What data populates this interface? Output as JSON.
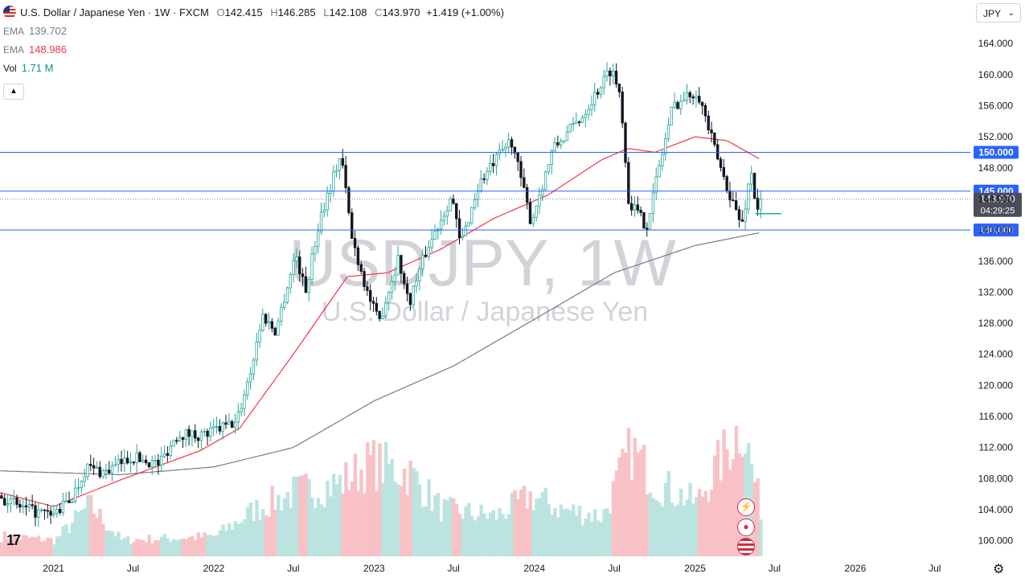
{
  "header": {
    "symbol_title": "U.S. Dollar / Japanese Yen · 1W · FXCM",
    "ohlc": [
      {
        "label": "O",
        "value": "142.415"
      },
      {
        "label": "H",
        "value": "146.285"
      },
      {
        "label": "L",
        "value": "142.108"
      },
      {
        "label": "C",
        "value": "143.970"
      }
    ],
    "change": "+1.419 (+1.00%)",
    "change_color": "#089981"
  },
  "indicators": [
    {
      "label": "EMA",
      "value": "139.702",
      "color": "#787b86"
    },
    {
      "label": "EMA",
      "value": "148.986",
      "color": "#f23645"
    },
    {
      "label": "Vol",
      "value": "1.71 M",
      "color": "#089981"
    }
  ],
  "currency_select": {
    "value": "JPY"
  },
  "watermark": {
    "symbol": "USDJPY, 1W",
    "name": "U.S. Dollar / Japanese Yen"
  },
  "icons": {
    "collapse": "chevron-up-icon",
    "logo": "tradingview-logo",
    "settings": "gear-icon"
  },
  "colors": {
    "up": "#26a69a",
    "down": "#131722",
    "level_line": "#2962ff",
    "ema_fast": "#f23645",
    "ema_slow": "#787b86",
    "volume_up": "#b2dfdb",
    "volume_down": "#f7b9bd"
  },
  "chart_data": {
    "type": "candlestick",
    "y_axis": {
      "ticks": [
        100,
        104,
        108,
        112,
        116,
        120,
        124,
        128,
        132,
        136,
        140,
        144,
        148,
        152,
        156,
        160,
        164
      ],
      "tick_labels": [
        "100.000",
        "104.000",
        "108.000",
        "112.000",
        "116.000",
        "120.000",
        "124.000",
        "128.000",
        "132.000",
        "136.000",
        "140.000",
        "144.000",
        "148.000",
        "152.000",
        "156.000",
        "160.000",
        "164.000"
      ],
      "ylim": [
        98,
        166.5
      ]
    },
    "x_axis": {
      "tick_labels": [
        "2021",
        "Jul",
        "2022",
        "Jul",
        "2023",
        "Jul",
        "2024",
        "Jul",
        "2025",
        "Jul",
        "2026",
        "Jul"
      ],
      "tick_dates": [
        "2021-01-01",
        "2021-07-01",
        "2022-01-01",
        "2022-07-01",
        "2023-01-01",
        "2023-07-01",
        "2024-01-01",
        "2024-07-01",
        "2025-01-01",
        "2025-07-01",
        "2026-01-01",
        "2026-07-01"
      ],
      "range": [
        "2020-09-01",
        "2026-09-20"
      ]
    },
    "price_path": [
      [
        "2020-09-01",
        105.8
      ],
      [
        "2020-11-01",
        104.0
      ],
      [
        "2021-01-01",
        103.2
      ],
      [
        "2021-02-15",
        105.5
      ],
      [
        "2021-03-20",
        109.5
      ],
      [
        "2021-05-01",
        108.8
      ],
      [
        "2021-07-01",
        110.8
      ],
      [
        "2021-09-01",
        109.9
      ],
      [
        "2021-10-15",
        113.8
      ],
      [
        "2021-12-15",
        113.6
      ],
      [
        "2022-01-15",
        114.4
      ],
      [
        "2022-02-25",
        115.2
      ],
      [
        "2022-04-01",
        122.5
      ],
      [
        "2022-04-25",
        129.0
      ],
      [
        "2022-05-25",
        127.0
      ],
      [
        "2022-07-10",
        137.0
      ],
      [
        "2022-08-01",
        132.0
      ],
      [
        "2022-09-05",
        142.0
      ],
      [
        "2022-10-21",
        149.8
      ],
      [
        "2022-11-15",
        139.0
      ],
      [
        "2022-12-20",
        132.0
      ],
      [
        "2023-01-15",
        128.0
      ],
      [
        "2023-03-01",
        136.5
      ],
      [
        "2023-03-24",
        130.5
      ],
      [
        "2023-05-01",
        137.0
      ],
      [
        "2023-06-30",
        144.5
      ],
      [
        "2023-07-20",
        138.0
      ],
      [
        "2023-09-01",
        146.0
      ],
      [
        "2023-11-13",
        151.7
      ],
      [
        "2023-12-28",
        141.0
      ],
      [
        "2024-02-15",
        150.3
      ],
      [
        "2024-04-20",
        154.5
      ],
      [
        "2024-06-28",
        160.9
      ],
      [
        "2024-07-20",
        157.0
      ],
      [
        "2024-08-05",
        144.0
      ],
      [
        "2024-09-16",
        140.5
      ],
      [
        "2024-10-20",
        149.5
      ],
      [
        "2024-11-15",
        156.0
      ],
      [
        "2025-01-10",
        158.0
      ],
      [
        "2025-02-20",
        150.0
      ],
      [
        "2025-03-11",
        146.7
      ],
      [
        "2025-04-21",
        140.5
      ],
      [
        "2025-05-12",
        147.8
      ],
      [
        "2025-05-25",
        142.4
      ],
      [
        "2025-06-02",
        143.97
      ]
    ],
    "ema_fast_path": [
      [
        "2020-09-01",
        106.2
      ],
      [
        "2021-01-01",
        104.4
      ],
      [
        "2021-06-01",
        107.8
      ],
      [
        "2021-12-01",
        111.6
      ],
      [
        "2022-03-01",
        114.5
      ],
      [
        "2022-07-01",
        124.0
      ],
      [
        "2022-11-01",
        134.0
      ],
      [
        "2023-02-01",
        134.5
      ],
      [
        "2023-06-01",
        137.5
      ],
      [
        "2023-10-01",
        141.5
      ],
      [
        "2024-02-01",
        144.5
      ],
      [
        "2024-06-01",
        149.0
      ],
      [
        "2024-08-01",
        150.5
      ],
      [
        "2024-10-01",
        150.0
      ],
      [
        "2025-01-01",
        152.0
      ],
      [
        "2025-03-15",
        151.5
      ],
      [
        "2025-06-02",
        148.986
      ]
    ],
    "ema_slow_path": [
      [
        "2020-09-01",
        109.0
      ],
      [
        "2021-06-01",
        108.5
      ],
      [
        "2022-01-01",
        109.5
      ],
      [
        "2022-07-01",
        112.0
      ],
      [
        "2023-01-01",
        118.0
      ],
      [
        "2023-07-01",
        122.5
      ],
      [
        "2024-01-01",
        128.5
      ],
      [
        "2024-07-01",
        134.5
      ],
      [
        "2025-01-01",
        138.0
      ],
      [
        "2025-06-02",
        139.702
      ]
    ],
    "volume_path": [
      [
        "2020-09-01",
        0.15
      ],
      [
        "2021-01-01",
        0.12
      ],
      [
        "2021-03-20",
        0.38
      ],
      [
        "2021-06-01",
        0.12
      ],
      [
        "2022-01-01",
        0.15
      ],
      [
        "2022-04-01",
        0.35
      ],
      [
        "2022-07-01",
        0.48
      ],
      [
        "2022-10-15",
        0.55
      ],
      [
        "2022-12-20",
        0.7
      ],
      [
        "2023-03-20",
        0.62
      ],
      [
        "2023-06-01",
        0.35
      ],
      [
        "2023-10-01",
        0.3
      ],
      [
        "2023-12-20",
        0.45
      ],
      [
        "2024-03-01",
        0.35
      ],
      [
        "2024-06-01",
        0.3
      ],
      [
        "2024-08-05",
        0.8
      ],
      [
        "2024-10-01",
        0.55
      ],
      [
        "2025-01-01",
        0.4
      ],
      [
        "2025-04-15",
        1.0
      ],
      [
        "2025-05-20",
        0.45
      ],
      [
        "2025-06-02",
        0.3
      ]
    ],
    "horizontal_levels": [
      {
        "value": 150.0,
        "label": "150.000"
      },
      {
        "value": 145.0,
        "label": "145.000"
      },
      {
        "value": 140.0,
        "label": "140.000"
      }
    ],
    "last_price": {
      "value": 143.97,
      "label": "143.970",
      "countdown": "04:29:25"
    },
    "stop_line": {
      "value": 142.1,
      "color": "#26a69a"
    }
  }
}
